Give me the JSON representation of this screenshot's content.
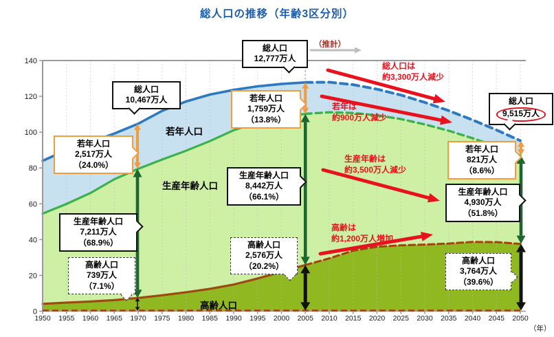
{
  "page": {
    "title": "総人口の推移（年齢3区分別）",
    "x_unit_label": "（年）"
  },
  "colors": {
    "title": "#1b5eab",
    "total_line": "#2e79c0",
    "young_fill": "#c7e1f1",
    "working_line": "#3cb04a",
    "working_fill": "#cdf0a4",
    "elderly_line": "#9c4a12",
    "elderly_line_projection": "#a5410d",
    "elderly_fill": "#8fb821",
    "red_annotation": "#e8121f",
    "orange_arrow": "#f09d3f",
    "dark_green_arrow": "#1d662f",
    "black_arrow": "#111111",
    "axis": "#999999",
    "grid": "#b9b9b9",
    "projection_arrow": "#bdbdbd"
  },
  "chart_data": {
    "type": "area",
    "title": "総人口の推移（年齢3区分別）",
    "stacked_order_bottom_to_top": [
      "高齢人口",
      "生産年齢人口",
      "若年人口"
    ],
    "x": [
      1950,
      1955,
      1960,
      1965,
      1970,
      1975,
      1980,
      1985,
      1990,
      1995,
      2000,
      2005,
      2010,
      2015,
      2020,
      2025,
      2030,
      2035,
      2040,
      2045,
      2050
    ],
    "series": [
      {
        "name": "総人口",
        "values": [
          84.0,
          90.0,
          94.4,
          99.2,
          104.7,
          111.9,
          117.1,
          121.0,
          123.6,
          125.6,
          126.9,
          127.8,
          127.9,
          126.5,
          124.0,
          120.7,
          116.6,
          112.0,
          106.8,
          101.2,
          95.2
        ]
      },
      {
        "name": "若年人口",
        "values": [
          29.5,
          30.1,
          28.4,
          25.5,
          25.2,
          27.2,
          27.5,
          26.0,
          22.5,
          20.1,
          18.5,
          17.6,
          16.8,
          15.8,
          14.6,
          13.4,
          12.3,
          11.2,
          10.2,
          9.2,
          8.2
        ]
      },
      {
        "name": "高齢人口",
        "values": [
          4.1,
          4.8,
          5.4,
          6.2,
          7.4,
          8.9,
          10.6,
          12.5,
          14.9,
          18.3,
          22.0,
          25.8,
          29.5,
          33.8,
          36.0,
          36.8,
          37.2,
          37.8,
          38.7,
          38.6,
          37.6
        ]
      }
    ],
    "projection_from": 2005,
    "ylim": [
      0,
      140
    ],
    "yticks": [
      0,
      20,
      40,
      60,
      80,
      100,
      120,
      140
    ],
    "xticks": [
      1950,
      1955,
      1960,
      1965,
      1970,
      1975,
      1980,
      1985,
      1990,
      1995,
      2000,
      2005,
      2010,
      2015,
      2020,
      2025,
      2030,
      2035,
      2040,
      2045,
      2050
    ],
    "grid": "vertical-dotted",
    "area_labels": [
      "若年人口",
      "生産年齢人口",
      "高齢人口"
    ]
  },
  "callouts": {
    "t1970": {
      "title": "総人口",
      "value": "10,467万人"
    },
    "y1970": {
      "title": "若年人口",
      "value": "2,517万人",
      "pct": "（24.0%）"
    },
    "w1970": {
      "title": "生産年齢人口",
      "value": "7,211万人",
      "pct": "（68.9%）"
    },
    "e1970": {
      "title": "高齢人口",
      "value": "739万人",
      "pct": "（7.1%）"
    },
    "t2005": {
      "title": "総人口",
      "value": "12,777万人"
    },
    "y2005": {
      "title": "若年人口",
      "value": "1,759万人",
      "pct": "（13.8%）"
    },
    "w2005": {
      "title": "生産年齢人口",
      "value": "8,442万人",
      "pct": "（66.1%）"
    },
    "e2005": {
      "title": "高齢人口",
      "value": "2,576万人",
      "pct": "（20.2%）"
    },
    "t2050": {
      "title": "総人口",
      "value": "9,515万人"
    },
    "y2050": {
      "title": "若年人口",
      "value": "821万人",
      "pct": "（8.6%）"
    },
    "w2050": {
      "title": "生産年齢人口",
      "value": "4,930万人",
      "pct": "（51.8%）"
    },
    "e2050": {
      "title": "高齢人口",
      "value": "3,764万人",
      "pct": "（39.6%）"
    }
  },
  "annotations": {
    "projection_note": "（推計）",
    "red_notes": {
      "total": {
        "line1": "総人口は",
        "line2": "約3,300万人減少"
      },
      "young": {
        "line1": "若年は",
        "line2": "約900万人減少"
      },
      "working": {
        "line1": "生産年齢は",
        "line2": "約3,500万人減少"
      },
      "elderly": {
        "line1": "高齢は",
        "line2": "約1,200万人増加"
      }
    }
  },
  "area_labels": {
    "young": "若年人口",
    "working": "生産年齢人口",
    "elderly": "高齢人口"
  }
}
